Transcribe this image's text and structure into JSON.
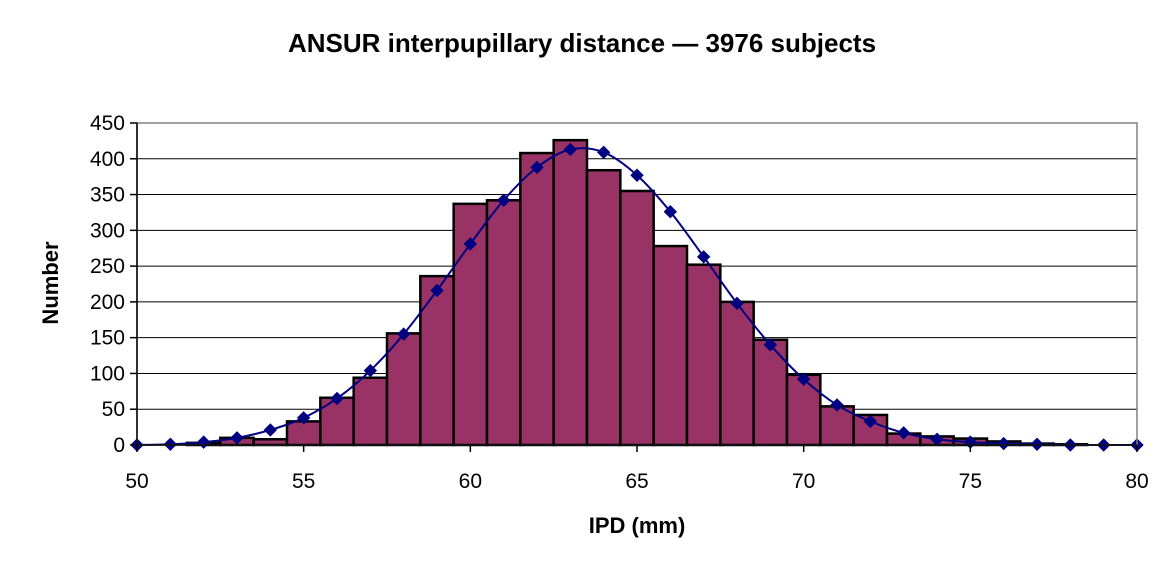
{
  "chart_data": {
    "type": "bar",
    "title": "ANSUR interpupillary distance — 3976 subjects",
    "xlabel": "IPD (mm)",
    "ylabel": "Number",
    "xlim": [
      50,
      80
    ],
    "ylim": [
      0,
      450
    ],
    "x_ticks": [
      50,
      55,
      60,
      65,
      70,
      75,
      80
    ],
    "y_ticks": [
      0,
      50,
      100,
      150,
      200,
      250,
      300,
      350,
      400,
      450
    ],
    "grid": "horizontal",
    "legend": "none",
    "colors": {
      "bars": "#993366",
      "curve": "#000080",
      "plot_bg": "#ffffff"
    },
    "histogram": {
      "bin_width": 1,
      "bins": [
        {
          "x": 52,
          "value": 3
        },
        {
          "x": 53,
          "value": 10
        },
        {
          "x": 54,
          "value": 8
        },
        {
          "x": 55,
          "value": 33
        },
        {
          "x": 56,
          "value": 66
        },
        {
          "x": 57,
          "value": 94
        },
        {
          "x": 58,
          "value": 156
        },
        {
          "x": 59,
          "value": 236
        },
        {
          "x": 60,
          "value": 337
        },
        {
          "x": 61,
          "value": 342
        },
        {
          "x": 62,
          "value": 408
        },
        {
          "x": 63,
          "value": 426
        },
        {
          "x": 64,
          "value": 384
        },
        {
          "x": 65,
          "value": 355
        },
        {
          "x": 66,
          "value": 278
        },
        {
          "x": 67,
          "value": 252
        },
        {
          "x": 68,
          "value": 200
        },
        {
          "x": 69,
          "value": 147
        },
        {
          "x": 70,
          "value": 98
        },
        {
          "x": 71,
          "value": 54
        },
        {
          "x": 72,
          "value": 42
        },
        {
          "x": 73,
          "value": 16
        },
        {
          "x": 74,
          "value": 12
        },
        {
          "x": 75,
          "value": 9
        },
        {
          "x": 76,
          "value": 5
        },
        {
          "x": 77,
          "value": 2
        },
        {
          "x": 78,
          "value": 1
        }
      ]
    },
    "curve": {
      "type": "line",
      "marker": "diamond",
      "x": [
        50,
        51,
        52,
        53,
        54,
        55,
        56,
        57,
        58,
        59,
        60,
        61,
        62,
        63,
        64,
        65,
        66,
        67,
        68,
        69,
        70,
        71,
        72,
        73,
        74,
        75,
        76,
        77,
        78,
        79,
        80
      ],
      "y": [
        0,
        1,
        4,
        10,
        21,
        38,
        65,
        104,
        155,
        216,
        281,
        342,
        388,
        413,
        409,
        377,
        326,
        263,
        198,
        140,
        92,
        56,
        33,
        17,
        8,
        4,
        2,
        1,
        0,
        0,
        0
      ]
    }
  }
}
